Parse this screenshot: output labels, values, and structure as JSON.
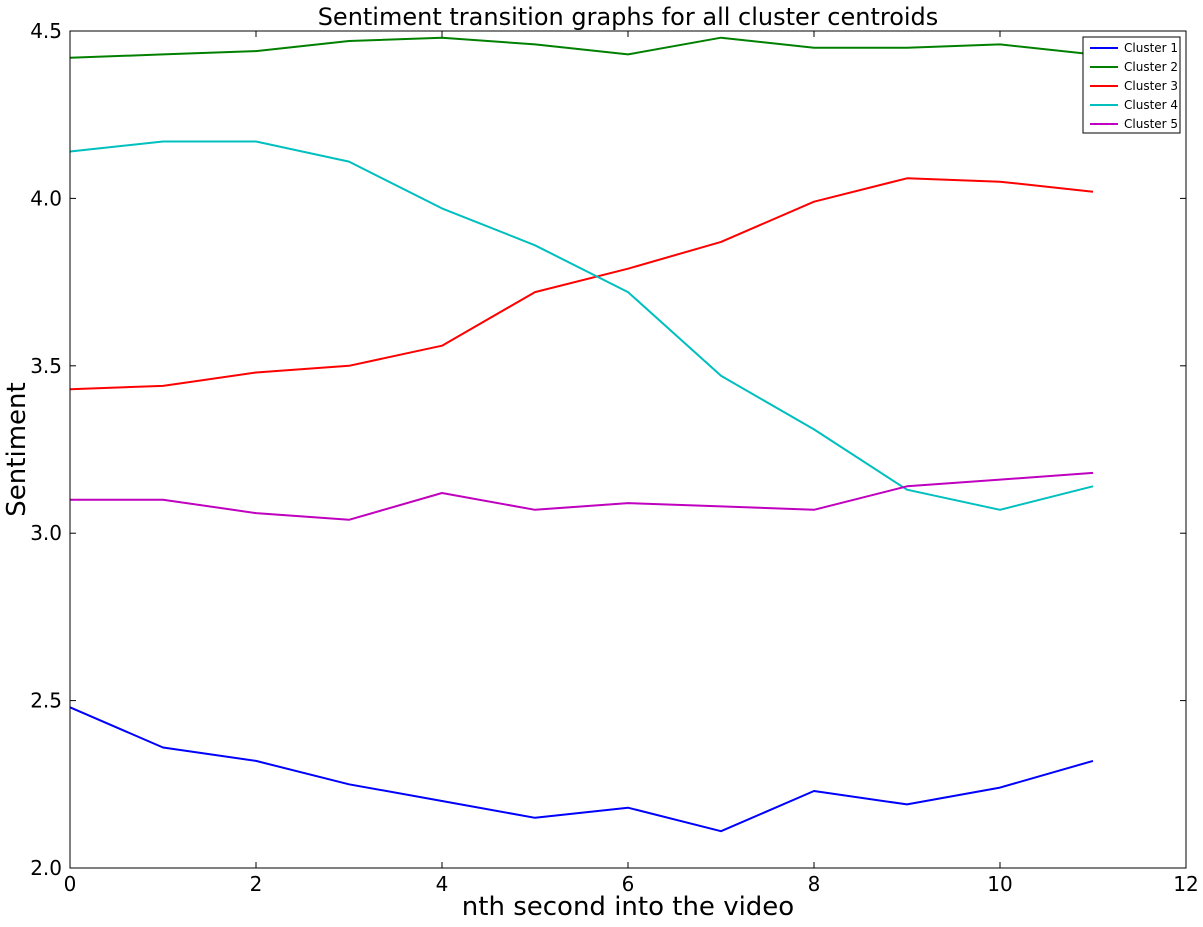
{
  "chart_data": {
    "type": "line",
    "title": "Sentiment transition graphs for all cluster centroids",
    "xlabel": "nth second into the video",
    "ylabel": "Sentiment",
    "xlim": [
      0,
      12
    ],
    "ylim": [
      2.0,
      4.5
    ],
    "xticks": [
      0,
      2,
      4,
      6,
      8,
      10,
      12
    ],
    "yticks": [
      2.0,
      2.5,
      3.0,
      3.5,
      4.0,
      4.5
    ],
    "xtick_labels": [
      "0",
      "2",
      "4",
      "6",
      "8",
      "10",
      "12"
    ],
    "ytick_labels": [
      "2.0",
      "2.5",
      "3.0",
      "3.5",
      "4.0",
      "4.5"
    ],
    "grid": false,
    "legend_position": "top-right",
    "x": [
      0,
      1,
      2,
      3,
      4,
      5,
      6,
      7,
      8,
      9,
      10,
      11
    ],
    "series": [
      {
        "name": "Cluster 1",
        "color": "#0000ff",
        "values": [
          2.48,
          2.36,
          2.32,
          2.25,
          2.2,
          2.15,
          2.18,
          2.11,
          2.23,
          2.19,
          2.24,
          2.32
        ]
      },
      {
        "name": "Cluster 2",
        "color": "#008000",
        "values": [
          4.42,
          4.43,
          4.44,
          4.47,
          4.48,
          4.46,
          4.43,
          4.48,
          4.45,
          4.45,
          4.46,
          4.43
        ]
      },
      {
        "name": "Cluster 3",
        "color": "#ff0000",
        "values": [
          3.43,
          3.44,
          3.48,
          3.5,
          3.56,
          3.72,
          3.79,
          3.87,
          3.99,
          4.06,
          4.05,
          4.02
        ]
      },
      {
        "name": "Cluster 4",
        "color": "#00bfbf",
        "values": [
          4.14,
          4.17,
          4.17,
          4.11,
          3.97,
          3.86,
          3.72,
          3.47,
          3.31,
          3.13,
          3.07,
          3.14
        ]
      },
      {
        "name": "Cluster 5",
        "color": "#bf00bf",
        "values": [
          3.1,
          3.1,
          3.06,
          3.04,
          3.12,
          3.07,
          3.09,
          3.08,
          3.07,
          3.14,
          3.16,
          3.18
        ]
      }
    ]
  }
}
